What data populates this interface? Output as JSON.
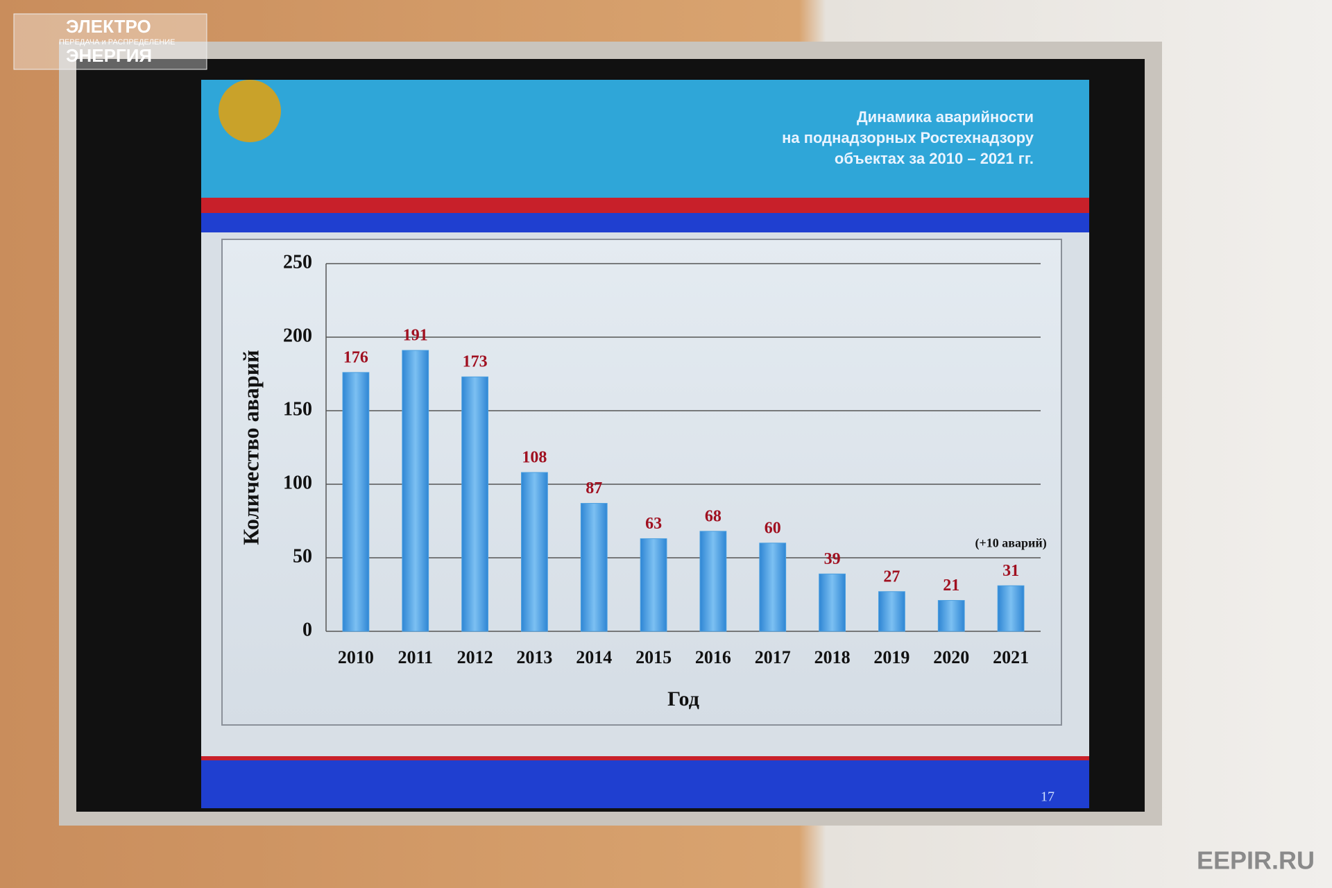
{
  "chart_data": {
    "type": "bar",
    "title": [
      "Динамика аварийности",
      "на поднадзорных Ростехнадзору",
      "объектах за 2010 – 2021 гг."
    ],
    "categories": [
      "2010",
      "2011",
      "2012",
      "2013",
      "2014",
      "2015",
      "2016",
      "2017",
      "2018",
      "2019",
      "2020",
      "2021"
    ],
    "values": [
      176,
      191,
      173,
      108,
      87,
      63,
      68,
      60,
      39,
      27,
      21,
      31
    ],
    "color": "#4a9fe0",
    "value_label_color": "#a01020",
    "ylim": [
      0,
      250
    ],
    "yticks": [
      0,
      50,
      100,
      150,
      200,
      250
    ],
    "grid": true,
    "y_label": "Количество аварий",
    "x_label": "Год",
    "annotation": "(+10 аварий)",
    "page_number": "17"
  },
  "watermark": {
    "logo_top": "ЭЛЕКТРО",
    "logo_middle": "ПЕРЕДАЧА и РАСПРЕДЕЛЕНИЕ",
    "logo_bottom": "ЭНЕРГИЯ",
    "site": "EEPIR.RU"
  }
}
